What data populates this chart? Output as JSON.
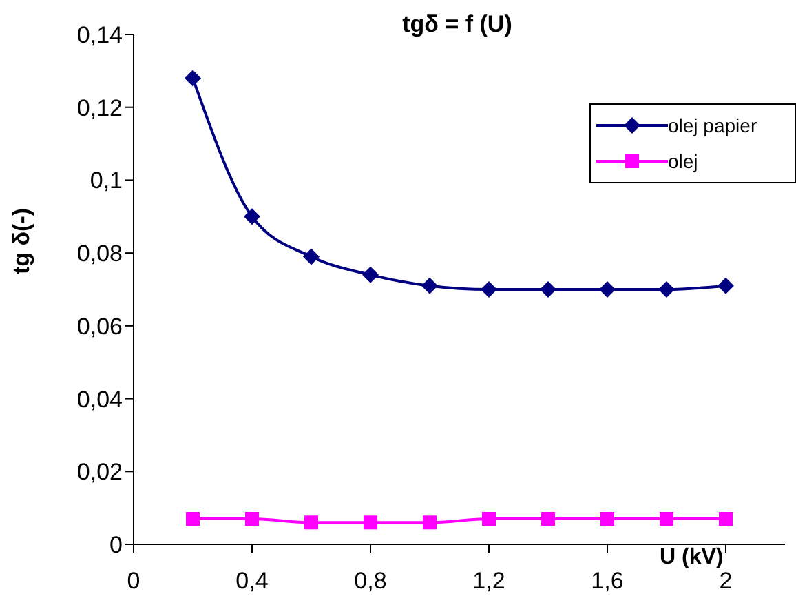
{
  "chart_data": {
    "type": "line",
    "title": "tgδ = f (U)",
    "xlabel": "U (kV)",
    "ylabel": "tg δ(-)",
    "x": [
      0.2,
      0.4,
      0.6,
      0.8,
      1.0,
      1.2,
      1.4,
      1.6,
      1.8,
      2.0
    ],
    "series": [
      {
        "name": "olej papier",
        "color": "#000080",
        "marker": "diamond",
        "values": [
          0.128,
          0.09,
          0.079,
          0.074,
          0.071,
          0.07,
          0.07,
          0.07,
          0.07,
          0.071
        ]
      },
      {
        "name": "olej",
        "color": "#ff00ff",
        "marker": "square",
        "values": [
          0.007,
          0.007,
          0.006,
          0.006,
          0.006,
          0.007,
          0.007,
          0.007,
          0.007,
          0.007
        ]
      }
    ],
    "xlim": [
      0,
      2.2
    ],
    "xticks": [
      0,
      {
        "value": 0.4,
        "label": "0,4"
      },
      {
        "value": 0.8,
        "label": "0,8"
      },
      {
        "value": 1.2,
        "label": "1,2"
      },
      {
        "value": 1.6,
        "label": "1,6"
      },
      2
    ],
    "ylim": [
      0,
      0.14
    ],
    "yticks": [
      0,
      {
        "value": 0.02,
        "label": "0,02"
      },
      {
        "value": 0.04,
        "label": "0,04"
      },
      {
        "value": 0.06,
        "label": "0,06"
      },
      {
        "value": 0.08,
        "label": "0,08"
      },
      {
        "value": 0.1,
        "label": "0,1"
      },
      {
        "value": 0.12,
        "label": "0,12"
      },
      {
        "value": 0.14,
        "label": "0,14"
      }
    ],
    "grid": false,
    "legend": "right",
    "line_style": "solid"
  }
}
